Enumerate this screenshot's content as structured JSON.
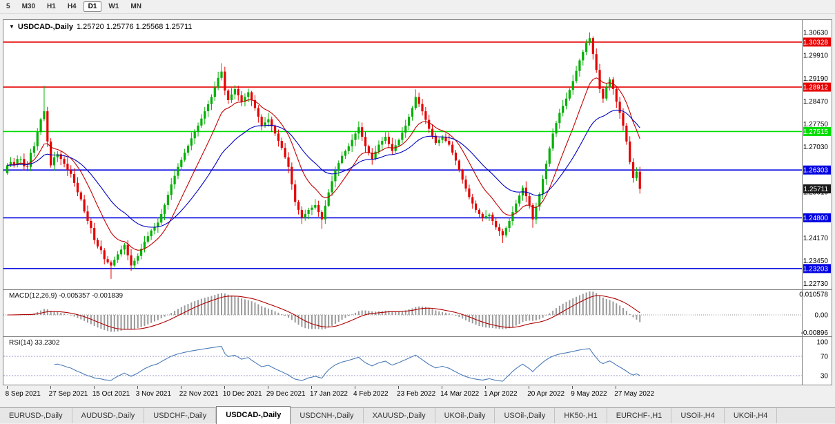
{
  "toolbar": {
    "timeframes": [
      {
        "label": "5",
        "active": false
      },
      {
        "label": "M30",
        "active": false
      },
      {
        "label": "H1",
        "active": false
      },
      {
        "label": "H4",
        "active": false
      },
      {
        "label": "D1",
        "active": true
      },
      {
        "label": "W1",
        "active": false
      },
      {
        "label": "MN",
        "active": false
      }
    ]
  },
  "chart_header": {
    "symbol": "USDCAD-,Daily",
    "ohlc": "1.25720 1.25776 1.25568 1.25711"
  },
  "indicators": {
    "macd": {
      "label": "MACD(12,26,9)",
      "values": "-0.005357 -0.001839",
      "axis": [
        {
          "label": "0.010578",
          "value": 0.010578
        },
        {
          "label": "0.00",
          "value": 0
        },
        {
          "label": "-0.00896",
          "value": -0.00896
        }
      ]
    },
    "rsi": {
      "label": "RSI(14)",
      "value": "33.2302",
      "axis": [
        {
          "label": "100",
          "value": 100
        },
        {
          "label": "70",
          "value": 70
        },
        {
          "label": "30",
          "value": 30
        }
      ],
      "guides": [
        70,
        30
      ]
    }
  },
  "chart_data": {
    "type": "candlestick",
    "symbol": "USDCAD-",
    "timeframe": "Daily",
    "y_range": [
      1.2255,
      1.3102
    ],
    "first_open": 1.262,
    "closes": [
      1.2645,
      1.2655,
      1.2648,
      1.2665,
      1.2665,
      1.2642,
      1.264,
      1.2685,
      1.2705,
      1.275,
      1.279,
      1.2815,
      1.272,
      1.2645,
      1.267,
      1.268,
      1.2665,
      1.265,
      1.263,
      1.2618,
      1.259,
      1.256,
      1.2538,
      1.25,
      1.247,
      1.2448,
      1.241,
      1.239,
      1.2378,
      1.235,
      1.234,
      1.233,
      1.2348,
      1.2365,
      1.238,
      1.2395,
      1.2362,
      1.233,
      1.2345,
      1.236,
      1.2382,
      1.2405,
      1.2422,
      1.244,
      1.2452,
      1.2465,
      1.2492,
      1.252,
      1.2552,
      1.2585,
      1.2612,
      1.264,
      1.2662,
      1.2685,
      1.2707,
      1.273,
      1.275,
      1.277,
      1.2792,
      1.2815,
      1.2837,
      1.286,
      1.289,
      1.292,
      1.294,
      1.288,
      1.285,
      1.2868,
      1.2885,
      1.2865,
      1.2845,
      1.286,
      1.2875,
      1.285,
      1.2825,
      1.2798,
      1.277,
      1.278,
      1.279,
      1.2768,
      1.2745,
      1.2722,
      1.27,
      1.267,
      1.264,
      1.2585,
      1.253,
      1.2505,
      1.248,
      1.2492,
      1.2505,
      1.2512,
      1.252,
      1.2498,
      1.2475,
      1.2518,
      1.256,
      1.2595,
      1.263,
      1.2652,
      1.2675,
      1.269,
      1.2705,
      1.2725,
      1.2745,
      1.2765,
      1.2735,
      1.2705,
      1.2685,
      1.2665,
      1.2688,
      1.271,
      1.2722,
      1.2735,
      1.2712,
      1.269,
      1.2708,
      1.2725,
      1.2748,
      1.277,
      1.2798,
      1.2825,
      1.286,
      1.2838,
      1.2815,
      1.2788,
      1.276,
      1.2738,
      1.2715,
      1.2725,
      1.2735,
      1.2722,
      1.271,
      1.2685,
      1.266,
      1.263,
      1.26,
      1.2572,
      1.2545,
      1.2525,
      1.2505,
      1.2492,
      1.248,
      1.2485,
      1.249,
      1.247,
      1.245,
      1.2438,
      1.2425,
      1.2448,
      1.247,
      1.2498,
      1.2525,
      1.255,
      1.2575,
      1.2548,
      1.252,
      1.2475,
      1.2515,
      1.2555,
      1.2602,
      1.265,
      1.2698,
      1.2745,
      1.2778,
      1.281,
      1.2832,
      1.2855,
      1.2882,
      1.291,
      1.2942,
      1.2975,
      1.3002,
      1.303,
      1.3045,
      1.2995,
      1.2945,
      1.2885,
      1.2855,
      1.289,
      1.2915,
      1.2885,
      1.2845,
      1.281,
      1.277,
      1.272,
      1.2655,
      1.2605,
      1.2625,
      1.2571
    ],
    "wick_overrides": {
      "11": [
        0.008,
        0.0006
      ],
      "31": [
        0.0006,
        0.0042
      ],
      "64": [
        0.0026,
        0.0008
      ],
      "94": [
        0.0006,
        0.003
      ],
      "122": [
        0.0024,
        0.0006
      ],
      "148": [
        0.0008,
        0.0024
      ],
      "157": [
        0.0006,
        0.0026
      ],
      "174": [
        0.0018,
        0.0008
      ]
    },
    "up_color": "#00b000",
    "down_color": "#e60000",
    "moving_averages": [
      {
        "type": "ema",
        "period": 12,
        "color": "#c40000"
      },
      {
        "type": "ema",
        "period": 30,
        "color": "#0000c0"
      }
    ],
    "levels": [
      {
        "value": 1.30328,
        "color": "#e60000"
      },
      {
        "value": 1.28912,
        "color": "#e60000"
      },
      {
        "value": 1.27515,
        "color": "#00dd00"
      },
      {
        "value": 1.26303,
        "color": "#0000e0"
      },
      {
        "value": 1.248,
        "color": "#0000e0"
      },
      {
        "value": 1.23203,
        "color": "#0000e0"
      }
    ],
    "current_price": {
      "value": 1.25711,
      "badge_color": "#1a1a1a"
    },
    "y_axis_labels": [
      1.3063,
      1.2991,
      1.2919,
      1.2847,
      1.2775,
      1.2703,
      1.2561,
      1.2417,
      1.2345,
      1.2273
    ],
    "x_axis": {
      "labels": [
        "8 Sep 2021",
        "27 Sep 2021",
        "15 Oct 2021",
        "3 Nov 2021",
        "22 Nov 2021",
        "10 Dec 2021",
        "29 Dec 2021",
        "17 Jan 2022",
        "4 Feb 2022",
        "23 Feb 2022",
        "14 Mar 2022",
        "1 Apr 2022",
        "20 Apr 2022",
        "9 May 2022",
        "27 May 2022"
      ],
      "bar_indices": [
        0,
        13,
        26,
        39,
        52,
        65,
        78,
        91,
        104,
        117,
        130,
        143,
        156,
        169,
        182
      ]
    }
  },
  "tabs": [
    {
      "label": "EURUSD-,Daily",
      "active": false
    },
    {
      "label": "AUDUSD-,Daily",
      "active": false
    },
    {
      "label": "USDCHF-,Daily",
      "active": false
    },
    {
      "label": "USDCAD-,Daily",
      "active": true
    },
    {
      "label": "USDCNH-,Daily",
      "active": false
    },
    {
      "label": "XAUUSD-,Daily",
      "active": false
    },
    {
      "label": "UKOil-,Daily",
      "active": false
    },
    {
      "label": "USOil-,Daily",
      "active": false
    },
    {
      "label": "HK50-,H1",
      "active": false
    },
    {
      "label": "EURCHF-,H1",
      "active": false
    },
    {
      "label": "USOil-,H4",
      "active": false
    },
    {
      "label": "UKOil-,H4",
      "active": false
    }
  ]
}
